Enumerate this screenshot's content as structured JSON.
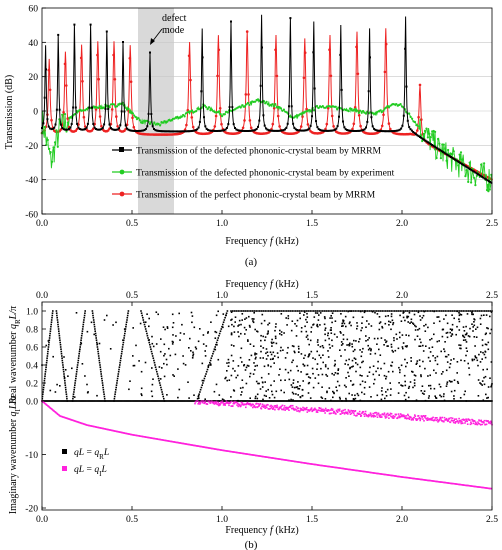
{
  "panel_a": {
    "label": "(a)",
    "ylabel": "Transmission (dB)",
    "xlabel": "Frequency",
    "xlabel_sym": "f",
    "xlabel_unit": "(kHz)",
    "xticks": [
      "0.0",
      "0.5",
      "1.0",
      "1.5",
      "2.0",
      "2.5"
    ],
    "yticks": [
      "60",
      "40",
      "20",
      "0",
      "-20",
      "-40",
      "-60"
    ],
    "annotation": [
      "defect",
      "mode"
    ],
    "legend": [
      {
        "label": "Transmission of the defected phononic-crystal beam by MRRM",
        "color": "#000000"
      },
      {
        "label": "Transmission of the defected phononic-crystal beam by experiment",
        "color": "#22cc22"
      },
      {
        "label": "Transmission of the perfect phononic-crystal beam by MRRM",
        "color": "#ee2222"
      }
    ]
  },
  "panel_b": {
    "label": "(b)",
    "xlabel": "Frequency",
    "xlabel_sym": "f",
    "xlabel_unit": "(kHz)",
    "xticks": [
      "0.0",
      "0.5",
      "1.0",
      "1.5",
      "2.0",
      "2.5"
    ],
    "yticks_top": [
      "1.0",
      "0.8",
      "0.6",
      "0.4",
      "0.2",
      "0.0"
    ],
    "yticks_bottom": [
      "0",
      "-10",
      "-20"
    ],
    "ylabel_top": "Real wavenumber",
    "ylabel_top_sym": "q",
    "ylabel_top_sub": "R",
    "ylabel_top_tail": "L/π",
    "ylabel_bottom": "Imaginary wavenumber",
    "ylabel_bottom_sym": "q",
    "ylabel_bottom_sub": "I",
    "ylabel_bottom_tail": "L/π",
    "legend": [
      {
        "lhs": "qL",
        "eq": "=",
        "rhs": "q",
        "sub": "R",
        "tail": "L",
        "color": "#000000"
      },
      {
        "lhs": "qL",
        "eq": "=",
        "rhs": "q",
        "sub": "I",
        "tail": "L",
        "color": "#ff22dd"
      }
    ]
  },
  "chart_data": [
    {
      "type": "line",
      "xlabel": "Frequency f (kHz)",
      "ylabel": "Transmission (dB)",
      "xlim": [
        0,
        2.5
      ],
      "ylim": [
        -60,
        60
      ],
      "shaded_band": [
        0.53,
        0.73
      ],
      "series": [
        {
          "name": "Transmission of the defected phononic-crystal beam by MRRM",
          "peaks": [
            0.02,
            0.09,
            0.18,
            0.27,
            0.36,
            0.45,
            0.6,
            0.89,
            1.05,
            1.22,
            1.38,
            1.51,
            1.66,
            1.82,
            2.02
          ],
          "peak_values": [
            38,
            44,
            50,
            50,
            46,
            40,
            34,
            48,
            52,
            56,
            54,
            52,
            50,
            48,
            55
          ],
          "valley_min": -12,
          "end_value": -42
        },
        {
          "name": "Transmission of the defected phononic-crystal beam by experiment",
          "x": [
            0.0,
            0.05,
            0.1,
            0.2,
            0.3,
            0.45,
            0.55,
            0.65,
            0.8,
            0.9,
            1.0,
            1.1,
            1.2,
            1.3,
            1.4,
            1.55,
            1.7,
            1.85,
            1.95,
            2.0,
            2.1,
            2.2,
            2.3,
            2.4,
            2.5
          ],
          "y": [
            -5,
            -30,
            -10,
            0,
            2,
            4,
            -6,
            -8,
            -2,
            3,
            -2,
            2,
            6,
            3,
            -4,
            3,
            1,
            -2,
            4,
            3,
            -10,
            -22,
            -30,
            -36,
            -40
          ]
        },
        {
          "name": "Transmission of the perfect phononic-crystal beam by MRRM",
          "peaks": [
            0.04,
            0.13,
            0.22,
            0.31,
            0.4,
            0.49,
            0.82,
            0.98,
            1.14,
            1.3,
            1.46,
            1.6,
            1.75,
            1.91,
            2.1
          ],
          "peak_values": [
            30,
            34,
            38,
            40,
            40,
            38,
            40,
            44,
            46,
            44,
            42,
            44,
            46,
            48,
            22
          ],
          "valley_min": -14,
          "end_value": -40
        }
      ]
    },
    {
      "type": "scatter",
      "xlabel": "Frequency f (kHz)",
      "xlim": [
        0,
        2.5
      ],
      "panels": [
        {
          "ylabel": "Real wavenumber qRL/π",
          "ylim": [
            0,
            1.0
          ],
          "series": [
            {
              "name": "qL = qRL",
              "color": "#000000"
            }
          ]
        },
        {
          "ylabel": "Imaginary wavenumber qIL/π",
          "ylim": [
            -20,
            0
          ],
          "series": [
            {
              "name": "qL = qIL",
              "color": "#ff22dd",
              "x": [
                0,
                0.1,
                0.25,
                0.5,
                1.0,
                1.5,
                2.0,
                2.5
              ],
              "y": [
                0,
                -2.8,
                -4.5,
                -6.3,
                -9.2,
                -11.8,
                -14.2,
                -16.4
              ]
            }
          ]
        }
      ]
    }
  ]
}
